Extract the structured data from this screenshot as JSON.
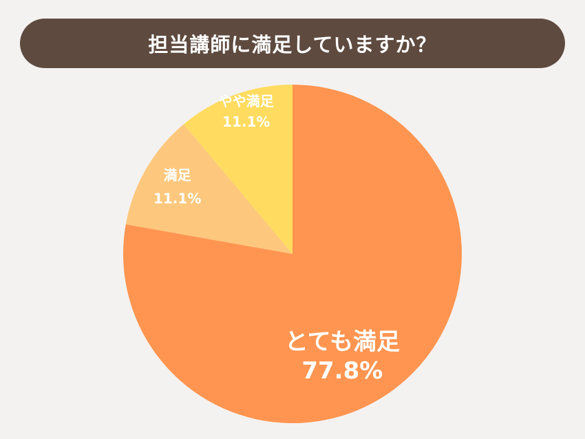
{
  "colors": {
    "background": "#f4f2f0",
    "title_bar": "#5e4a3f",
    "title_text": "#ffffff",
    "label_text": "#ffffff"
  },
  "chart_data": {
    "type": "pie",
    "title": "担当講師に満足していますか？",
    "slices": [
      {
        "label": "とても満足",
        "value": 77.8,
        "value_label": "77.8%",
        "color": "#ff9550"
      },
      {
        "label": "満足",
        "value": 11.1,
        "value_label": "11.1%",
        "color": "#fdc87d"
      },
      {
        "label": "やや満足",
        "value": 11.1,
        "value_label": "11.1%",
        "color": "#ffdc5f"
      }
    ],
    "start_angle_deg": 0,
    "direction": "clockwise",
    "legend": "none"
  }
}
